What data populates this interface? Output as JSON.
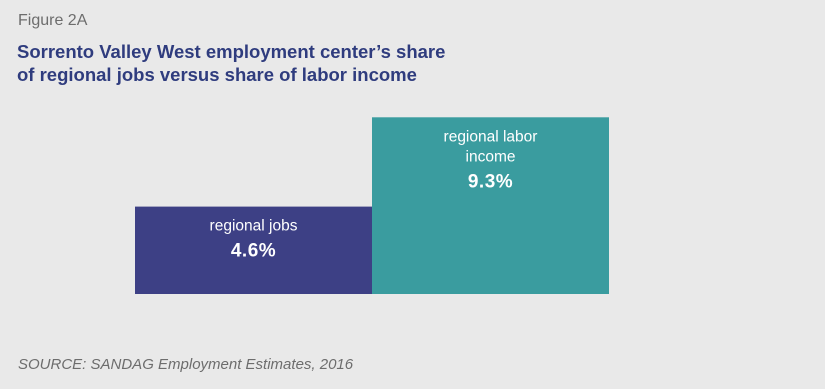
{
  "figure_label": "Figure 2A",
  "title_line1": "Sorrento Valley West employment center’s share",
  "title_line2": "of regional jobs versus share of labor income",
  "source": "SOURCE: SANDAG Employment Estimates, 2016",
  "colors": {
    "jobs": "#3d4085",
    "income": "#3a9c9f",
    "background": "#e9e9e9",
    "title": "#2f3c7e"
  },
  "chart_data": {
    "type": "bar",
    "categories": [
      "regional jobs",
      "regional labor income"
    ],
    "category_lines": [
      [
        "regional jobs"
      ],
      [
        "regional labor",
        "income"
      ]
    ],
    "values": [
      4.6,
      9.3
    ],
    "value_labels": [
      "4.6%",
      "9.3%"
    ],
    "unit": "%",
    "title": "Sorrento Valley West employment center’s share of regional jobs versus share of labor income",
    "xlabel": "",
    "ylabel": "",
    "grid": false,
    "legend": "none"
  }
}
